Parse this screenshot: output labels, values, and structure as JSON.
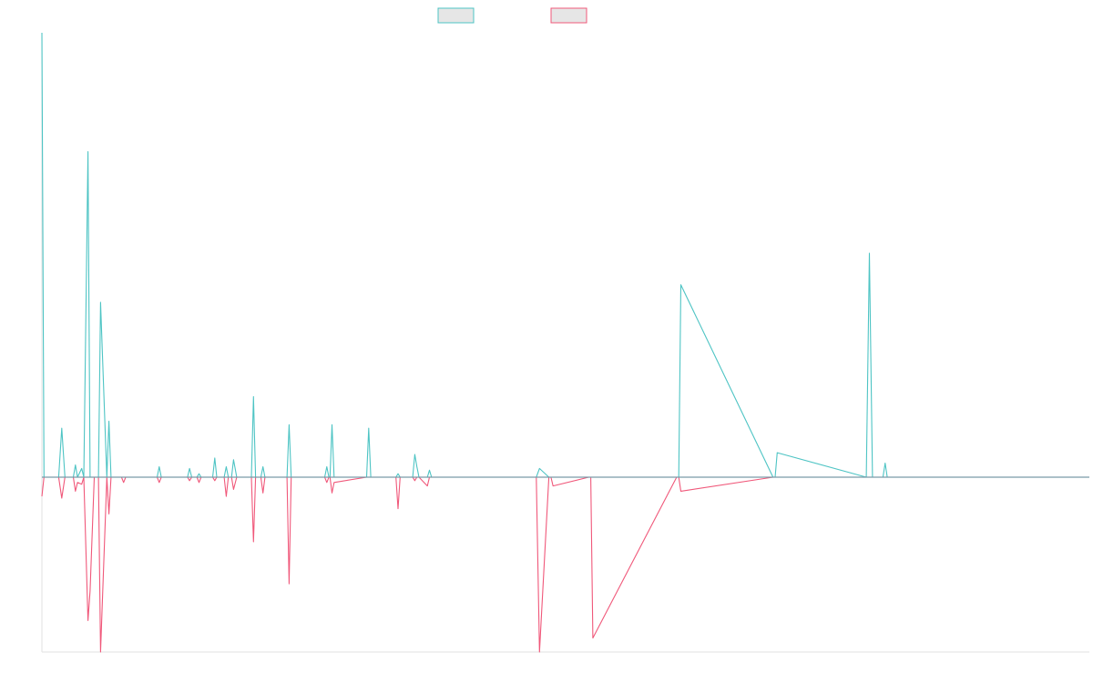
{
  "legend": [
    {
      "fill": "#e6e6e6",
      "stroke": "#4ec4c4"
    },
    {
      "fill": "#e6e6e6",
      "stroke": "#f0587a"
    }
  ],
  "chart_data": {
    "type": "line",
    "title": "",
    "xlabel": "",
    "ylabel": "",
    "grid": false,
    "legend_position": "top-center",
    "xlim": [
      0,
      100
    ],
    "ylim": [
      -100,
      254
    ],
    "series": [
      {
        "color": "#4ec4c4",
        "x": [
          0,
          0.2,
          0.4,
          1.6,
          1.9,
          2.2,
          3.0,
          3.2,
          3.4,
          3.8,
          4.0,
          4.4,
          4.6,
          5.0,
          5.4,
          5.6,
          6.2,
          6.4,
          6.6,
          7.6,
          7.8,
          8.0,
          11.0,
          11.2,
          11.4,
          13.9,
          14.1,
          14.3,
          14.8,
          15.0,
          15.2,
          16.3,
          16.5,
          16.7,
          17.4,
          17.6,
          17.8,
          18.1,
          18.3,
          18.6,
          20.0,
          20.2,
          20.4,
          20.9,
          21.1,
          21.3,
          23.4,
          23.6,
          23.8,
          27.0,
          27.2,
          27.4,
          27.5,
          27.7,
          27.9,
          31.0,
          31.2,
          31.4,
          33.8,
          34.0,
          34.2,
          35.4,
          35.6,
          35.8,
          36.0,
          36.8,
          37.0,
          37.2,
          41.3,
          41.5,
          41.7,
          47.0,
          47.2,
          47.5,
          48.4,
          48.6,
          48.8,
          52.2,
          52.4,
          52.6,
          60.6,
          60.8,
          61.0,
          69.8,
          70.0,
          70.2,
          78.7,
          79.0,
          79.3,
          80.3,
          80.5,
          80.7,
          93.5,
          93.7,
          93.9,
          100
        ],
        "y": [
          254,
          0,
          0,
          0,
          28,
          0,
          0,
          7,
          0,
          5,
          0,
          186,
          0,
          0,
          0,
          100,
          0,
          32,
          0,
          0,
          0,
          0,
          0,
          6,
          0,
          0,
          5,
          0,
          0,
          2,
          0,
          0,
          11,
          0,
          0,
          6,
          0,
          0,
          10,
          0,
          0,
          46,
          0,
          0,
          6,
          0,
          0,
          30,
          0,
          0,
          6,
          0,
          0,
          30,
          0,
          0,
          28,
          0,
          0,
          2,
          0,
          0,
          13,
          6,
          0,
          0,
          4,
          0,
          0,
          0,
          0,
          0,
          0,
          5,
          0,
          0,
          0,
          0,
          0,
          0,
          0,
          0,
          110,
          0,
          0,
          14,
          0,
          128,
          0,
          0,
          8,
          0,
          0,
          0,
          0,
          0
        ]
      },
      {
        "color": "#f0587a",
        "x": [
          0,
          0.2,
          0.4,
          1.6,
          1.9,
          2.2,
          3.0,
          3.2,
          3.4,
          3.8,
          4.0,
          4.4,
          4.6,
          5.0,
          5.4,
          5.6,
          6.2,
          6.4,
          6.6,
          7.6,
          7.8,
          8.0,
          11.0,
          11.2,
          11.4,
          13.9,
          14.1,
          14.3,
          14.8,
          15.0,
          15.2,
          16.3,
          16.5,
          16.7,
          17.4,
          17.6,
          17.8,
          18.1,
          18.3,
          18.6,
          20.0,
          20.2,
          20.4,
          20.9,
          21.1,
          21.3,
          23.4,
          23.6,
          23.8,
          27.0,
          27.2,
          27.4,
          27.5,
          27.7,
          27.9,
          31.0,
          31.2,
          31.4,
          33.8,
          34.0,
          34.2,
          35.4,
          35.6,
          35.8,
          36.0,
          36.8,
          37.0,
          37.2,
          41.3,
          41.5,
          41.7,
          47.0,
          47.2,
          47.5,
          48.4,
          48.6,
          48.8,
          52.2,
          52.4,
          52.6,
          60.6,
          60.8,
          61.0,
          69.8,
          70.0,
          70.2,
          78.7,
          79.0,
          79.3,
          80.3,
          80.5,
          80.7,
          93.5,
          93.7,
          93.9,
          100
        ],
        "y": [
          -11,
          0,
          0,
          0,
          -12,
          0,
          0,
          -8,
          -3,
          -4,
          0,
          -82,
          -65,
          0,
          0,
          -100,
          0,
          -21,
          0,
          0,
          -3,
          0,
          0,
          -3,
          0,
          0,
          -2,
          0,
          0,
          -3,
          0,
          0,
          -2,
          0,
          0,
          -11,
          0,
          0,
          -7,
          0,
          0,
          -37,
          0,
          0,
          -9,
          0,
          0,
          -61,
          0,
          0,
          -3,
          0,
          0,
          -9,
          -3,
          0,
          0,
          0,
          0,
          -18,
          0,
          0,
          -2,
          0,
          0,
          -5,
          0,
          0,
          0,
          0,
          0,
          0,
          0,
          -100,
          0,
          0,
          -5,
          0,
          0,
          -92,
          0,
          0,
          -8,
          0,
          0,
          0,
          0,
          0,
          0,
          0,
          0,
          0,
          0,
          0,
          0,
          0
        ]
      }
    ]
  }
}
